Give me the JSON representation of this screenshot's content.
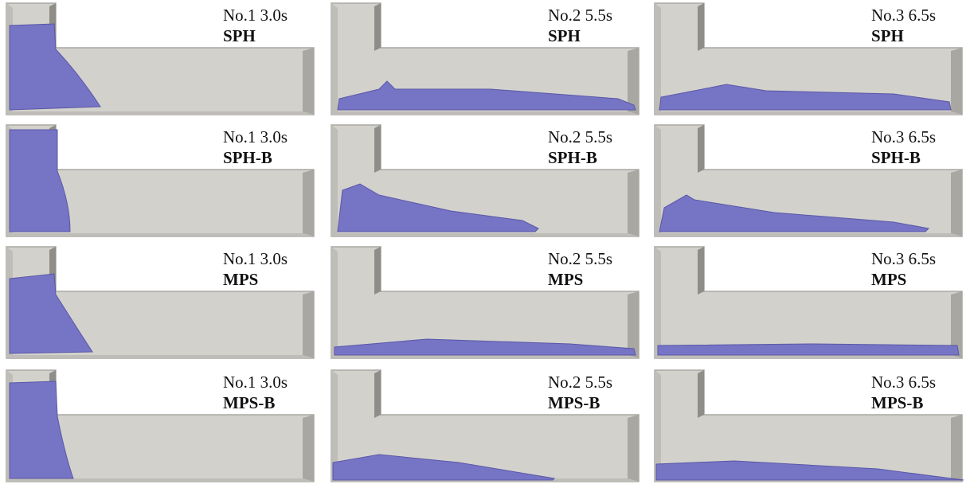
{
  "panels": [
    [
      {
        "time": "No.1 3.0s",
        "method": "SPH"
      },
      {
        "time": "No.2 5.5s",
        "method": "SPH"
      },
      {
        "time": "No.3 6.5s",
        "method": "SPH"
      }
    ],
    [
      {
        "time": "No.1 3.0s",
        "method": "SPH-B"
      },
      {
        "time": "No.2 5.5s",
        "method": "SPH-B"
      },
      {
        "time": "No.3 6.5s",
        "method": "SPH-B"
      }
    ],
    [
      {
        "time": "No.1 3.0s",
        "method": "MPS"
      },
      {
        "time": "No.2 5.5s",
        "method": "MPS"
      },
      {
        "time": "No.3 6.5s",
        "method": "MPS"
      }
    ],
    [
      {
        "time": "No.1 3.0s",
        "method": "MPS-B"
      },
      {
        "time": "No.2 5.5s",
        "method": "MPS-B"
      },
      {
        "time": "No.3 6.5s",
        "method": "MPS-B"
      }
    ]
  ]
}
